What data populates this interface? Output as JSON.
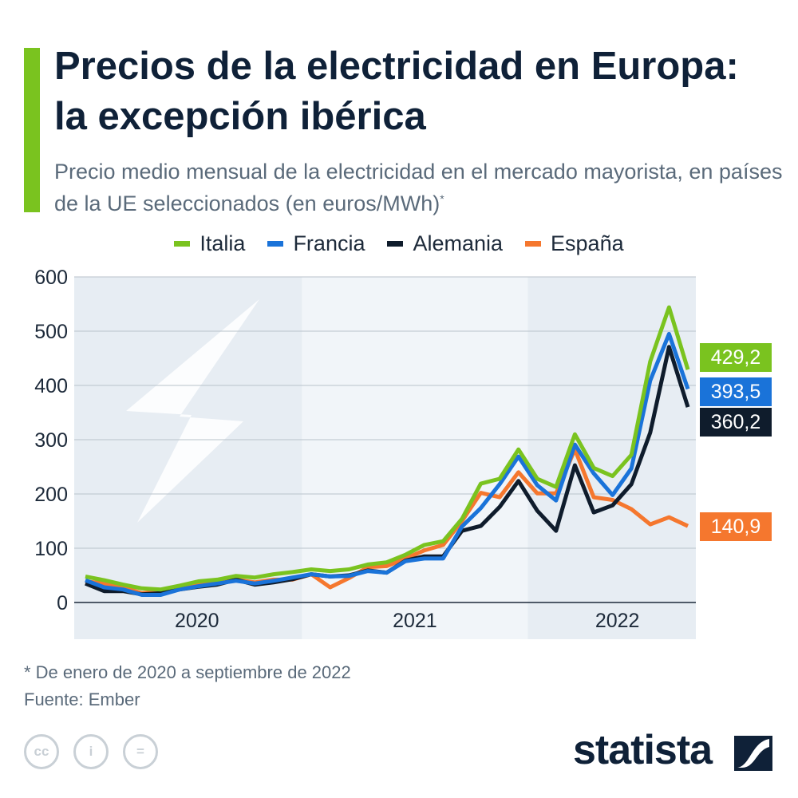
{
  "title": "Precios de la electricidad en Europa: la excepción ibérica",
  "subtitle": "Precio medio mensual de la electricidad en el mercado mayorista, en países de la UE seleccionados (en euros/MWh)",
  "subtitle_mark": "*",
  "footnote": "* De enero de 2020 a septiembre de 2022",
  "source": "Fuente: Ember",
  "brand": "statista",
  "license_icons": [
    "cc-icon",
    "attribution-icon",
    "no-derivatives-icon"
  ],
  "license_labels": [
    "cc",
    "i",
    "="
  ],
  "chart_data": {
    "type": "line",
    "x_start": "2020-01",
    "x_end": "2022-09",
    "x_tick_labels": [
      "2020",
      "2021",
      "2022"
    ],
    "ylim": [
      0,
      600
    ],
    "y_ticks": [
      0,
      100,
      200,
      300,
      400,
      500,
      600
    ],
    "grid": true,
    "legend_position": "top",
    "series": [
      {
        "name": "Italia",
        "color": "#7ac31f",
        "last_label": "429,2",
        "values": [
          48,
          41,
          33,
          26,
          24,
          31,
          39,
          42,
          49,
          46,
          52,
          56,
          61,
          58,
          61,
          70,
          74,
          88,
          106,
          113,
          154,
          219,
          228,
          282,
          228,
          213,
          310,
          248,
          233,
          272,
          444,
          544,
          429.2
        ]
      },
      {
        "name": "Francia",
        "color": "#1a73d9",
        "last_label": "393,5",
        "values": [
          41,
          28,
          24,
          14,
          14,
          24,
          30,
          35,
          40,
          35,
          40,
          46,
          52,
          48,
          49,
          58,
          55,
          76,
          81,
          81,
          140,
          174,
          218,
          269,
          216,
          188,
          291,
          238,
          198,
          247,
          409,
          495,
          393.5
        ]
      },
      {
        "name": "Alemania",
        "color": "#0f1c2c",
        "last_label": "360,2",
        "values": [
          35,
          21,
          21,
          15,
          17,
          24,
          29,
          33,
          42,
          33,
          37,
          43,
          52,
          48,
          50,
          59,
          55,
          77,
          85,
          85,
          132,
          141,
          176,
          224,
          169,
          132,
          253,
          166,
          179,
          218,
          313,
          471,
          360.2
        ]
      },
      {
        "name": "España",
        "color": "#f5772e",
        "last_label": "140,9",
        "values": [
          39,
          35,
          28,
          17,
          21,
          30,
          35,
          36,
          42,
          37,
          42,
          42,
          52,
          28,
          45,
          65,
          67,
          81,
          96,
          106,
          150,
          202,
          194,
          240,
          201,
          201,
          282,
          194,
          189,
          172,
          144,
          157,
          140.9
        ]
      }
    ]
  }
}
